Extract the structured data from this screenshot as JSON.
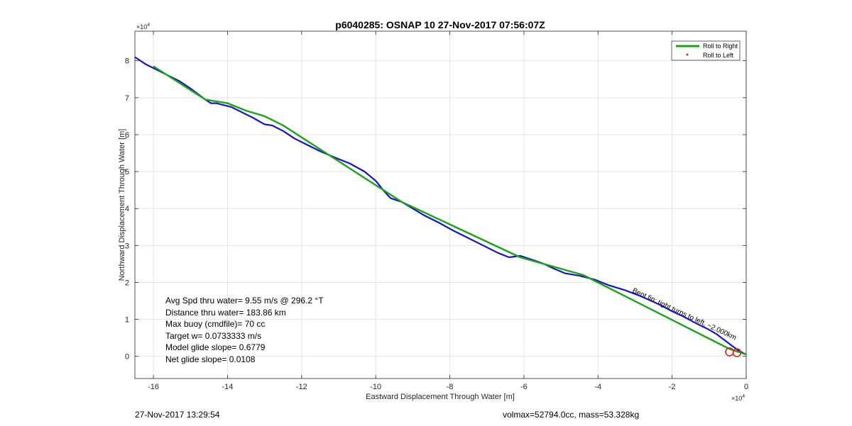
{
  "chart_data": {
    "type": "line",
    "title": "p6040285: OSNAP 10 27-Nov-2017 07:56:07Z",
    "xlabel": "Eastward Displacement Through Water [m]",
    "ylabel": "Northward Displacement Through Water [m]",
    "x_exponent": "×10",
    "x_exponent_power": "4",
    "y_exponent": "×10",
    "y_exponent_power": "4",
    "xlim": [
      -16.5,
      0
    ],
    "ylim": [
      -0.6,
      8.8
    ],
    "xticks": [
      -16,
      -14,
      -12,
      -10,
      -8,
      -6,
      -4,
      -2,
      0
    ],
    "yticks": [
      0,
      1,
      2,
      3,
      4,
      5,
      6,
      7,
      8
    ],
    "grid": true,
    "legend": {
      "placement": "top-right",
      "entries": [
        {
          "label": "Roll to Right",
          "color": "#1aa31a",
          "style": "line"
        },
        {
          "label": "Roll to Left",
          "color": "#dd2222",
          "style": "point"
        }
      ]
    },
    "series": [
      {
        "color": "#1414c8",
        "x": [
          -16.5,
          -16.2,
          -15.9,
          -15.6,
          -15.3,
          -15.0,
          -14.8,
          -14.6,
          -14.45,
          -14.3,
          -14.1,
          -13.9,
          -13.6,
          -13.3,
          -13.0,
          -12.8,
          -12.5,
          -12.2,
          -11.9,
          -11.5,
          -11.1,
          -10.7,
          -10.3,
          -10.0,
          -9.8,
          -9.6,
          -9.3,
          -9.0,
          -8.7,
          -8.3,
          -7.9,
          -7.5,
          -7.1,
          -6.7,
          -6.4,
          -6.1,
          -5.8,
          -5.5,
          -5.2,
          -4.9,
          -4.5,
          -4.1,
          -3.7,
          -3.3,
          -2.9,
          -2.6,
          -2.3,
          -2.0,
          -1.7,
          -1.4,
          -1.2,
          -1.0,
          -0.8,
          -0.6,
          -0.4,
          -0.2,
          0.0
        ],
        "y": [
          8.1,
          7.9,
          7.75,
          7.6,
          7.45,
          7.25,
          7.1,
          6.95,
          6.85,
          6.85,
          6.8,
          6.75,
          6.6,
          6.45,
          6.28,
          6.25,
          6.1,
          5.9,
          5.75,
          5.55,
          5.38,
          5.22,
          5.0,
          4.75,
          4.5,
          4.28,
          4.18,
          4.0,
          3.82,
          3.62,
          3.4,
          3.2,
          3.0,
          2.8,
          2.68,
          2.72,
          2.62,
          2.52,
          2.38,
          2.25,
          2.18,
          2.08,
          1.92,
          1.8,
          1.65,
          1.52,
          1.38,
          1.22,
          1.08,
          0.92,
          0.82,
          0.72,
          0.6,
          0.45,
          0.3,
          0.15,
          0.05
        ]
      },
      {
        "color": "#1aa31a",
        "x": [
          -16.0,
          -14.6,
          -14.0,
          -13.5,
          -13.0,
          -12.5,
          -9.3,
          -6.1,
          -4.4,
          -0.45,
          0.0
        ],
        "y": [
          7.85,
          6.95,
          6.85,
          6.65,
          6.5,
          6.25,
          4.18,
          2.68,
          2.2,
          0.2,
          0.05
        ]
      }
    ],
    "markers": [
      {
        "x": -0.45,
        "y": 0.12,
        "color": "#dd2222"
      },
      {
        "x": -0.25,
        "y": 0.1,
        "color": "#dd2222"
      }
    ],
    "annotation": "Bent fin: tight turns to left, ~2.000km",
    "stats": [
      "Avg Spd thru water=  9.55 m/s @ 296.2 °T",
      "Distance thru water= 183.86 km",
      "Max buoy (cmdfile)= 70 cc",
      "Target w= 0.0733333 m/s",
      "Model glide slope= 0.6779",
      "Net glide slope= 0.0108"
    ]
  },
  "footer": {
    "left": "27-Nov-2017 13:29:54",
    "right": "volmax=52794.0cc, mass=53.328kg"
  }
}
